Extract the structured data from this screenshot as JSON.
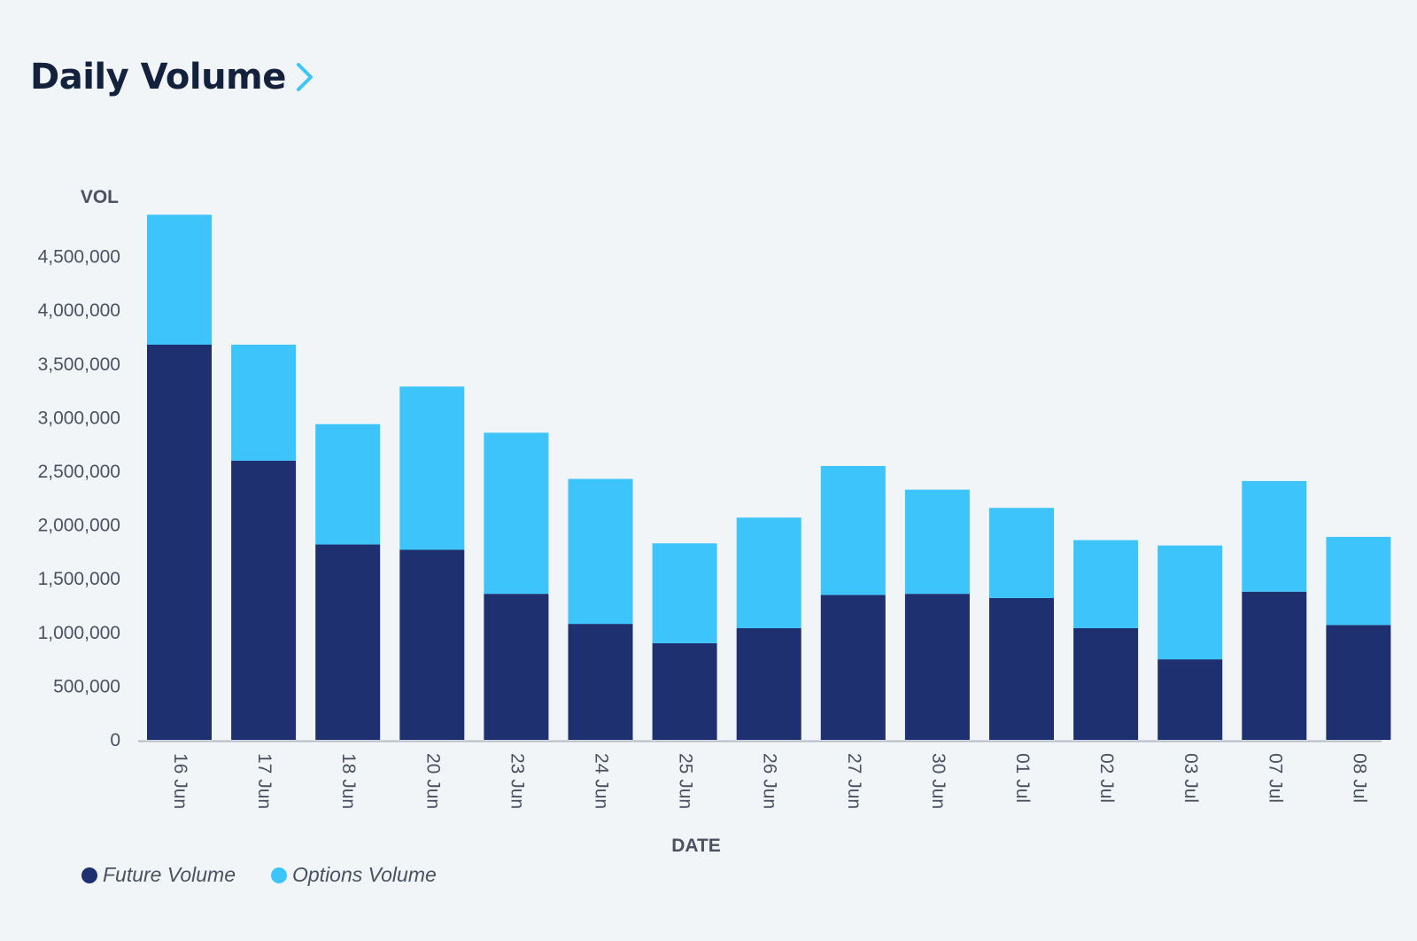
{
  "header": {
    "title": "Daily Volume",
    "chevron_icon": "chevron-right-icon"
  },
  "colors": {
    "future": "#1f3070",
    "options": "#3dc5fb",
    "axis_text": "#4a5160",
    "axis_line": "#b6bcc6"
  },
  "chart_data": {
    "type": "bar",
    "stacked": true,
    "ylabel": "VOL",
    "xlabel": "DATE",
    "ylim": [
      0,
      4900000
    ],
    "yticks": [
      0,
      500000,
      1000000,
      1500000,
      2000000,
      2500000,
      3000000,
      3500000,
      4000000,
      4500000
    ],
    "ytick_labels": [
      "0",
      "500,000",
      "1,000,000",
      "1,500,000",
      "2,000,000",
      "2,500,000",
      "3,000,000",
      "3,500,000",
      "4,000,000",
      "4,500,000"
    ],
    "categories": [
      "16 Jun",
      "17 Jun",
      "18 Jun",
      "20 Jun",
      "23 Jun",
      "24 Jun",
      "25 Jun",
      "26 Jun",
      "27 Jun",
      "30 Jun",
      "01 Jul",
      "02 Jul",
      "03 Jul",
      "07 Jul",
      "08 Jul"
    ],
    "series": [
      {
        "name": "Future Volume",
        "values": [
          3680000,
          2600000,
          1820000,
          1770000,
          1360000,
          1080000,
          900000,
          1040000,
          1350000,
          1360000,
          1320000,
          1040000,
          750000,
          1380000,
          1070000
        ]
      },
      {
        "name": "Options Volume",
        "values": [
          1210000,
          1080000,
          1120000,
          1520000,
          1500000,
          1350000,
          930000,
          1030000,
          1200000,
          970000,
          840000,
          820000,
          1060000,
          1030000,
          820000
        ]
      }
    ],
    "legend_position": "bottom-left"
  }
}
